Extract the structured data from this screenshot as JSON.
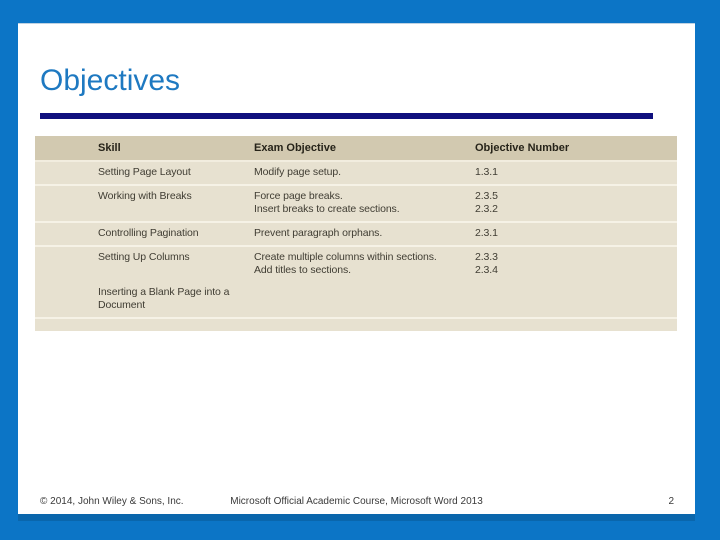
{
  "slide": {
    "title": "Objectives",
    "page_number": "2",
    "footer": {
      "copyright": "© 2014, John Wiley & Sons, Inc.",
      "course": "Microsoft Official Academic Course, Microsoft Word 2013"
    },
    "table": {
      "columns": [
        "Skill",
        "Exam Objective",
        "Objective Number"
      ],
      "rows": [
        {
          "skill": "Setting Page Layout",
          "objectives": [
            "Modify page setup."
          ],
          "numbers": [
            "1.3.1"
          ],
          "divider": true
        },
        {
          "skill": "Working with Breaks",
          "objectives": [
            "Force page breaks.",
            "Insert breaks to create sections."
          ],
          "numbers": [
            "2.3.5",
            "2.3.2"
          ],
          "divider": true
        },
        {
          "skill": "Controlling Pagination",
          "objectives": [
            "Prevent paragraph orphans."
          ],
          "numbers": [
            "2.3.1"
          ],
          "divider": true
        },
        {
          "skill": "Setting Up Columns",
          "objectives": [
            "Create multiple columns within sections.",
            "Add titles to sections."
          ],
          "numbers": [
            "2.3.3",
            "2.3.4"
          ],
          "divider": false
        },
        {
          "skill": "Inserting a Blank Page into a Document",
          "objectives": [],
          "numbers": [],
          "divider": true
        }
      ]
    },
    "colors": {
      "frame_blue": "#0C75C6",
      "title_blue": "#1E79C1",
      "rule_navy": "#10107E",
      "table_header_bg": "#D2C9B0",
      "table_body_bg": "#E7E1D0"
    }
  }
}
